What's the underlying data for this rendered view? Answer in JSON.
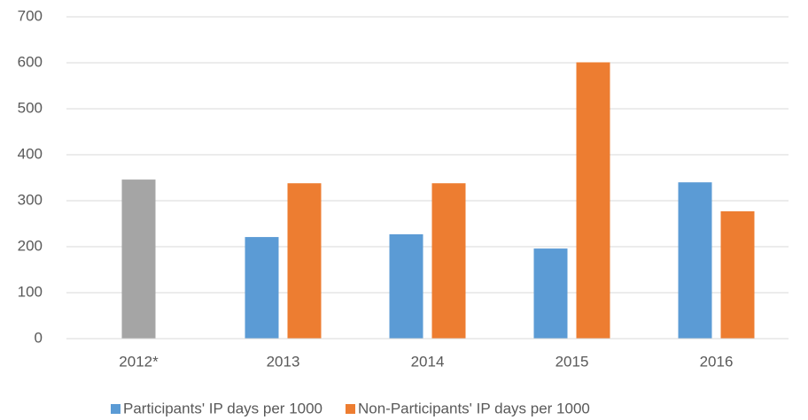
{
  "chart_data": {
    "type": "bar",
    "categories": [
      "2012*",
      "2013",
      "2014",
      "2015",
      "2016"
    ],
    "series": [
      {
        "name": "Participants' IP days per 1000",
        "color": "#5b9bd5",
        "values": [
          null,
          221,
          227,
          196,
          340
        ]
      },
      {
        "name": "Non-Participants' IP days per 1000",
        "color": "#ed7d31",
        "values": [
          null,
          338,
          338,
          601,
          277
        ]
      },
      {
        "color": "#a5a5a5",
        "values": [
          346,
          null,
          null,
          null,
          null
        ]
      }
    ],
    "ylim": [
      0,
      700
    ],
    "yticks": [
      0,
      100,
      200,
      300,
      400,
      500,
      600,
      700
    ],
    "grid": true,
    "legend": "bottom"
  }
}
